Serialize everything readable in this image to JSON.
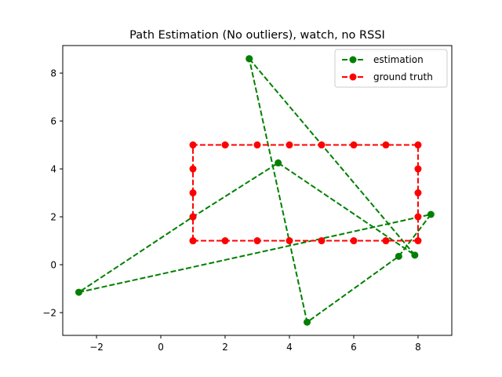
{
  "chart_data": {
    "type": "line",
    "title": "Path Estimation (No outliers), watch, no RSSI",
    "xlabel": "",
    "ylabel": "",
    "xlim": [
      -3.05,
      9.05
    ],
    "ylim": [
      -2.95,
      9.15
    ],
    "xticks": [
      -2,
      0,
      2,
      4,
      6,
      8
    ],
    "yticks": [
      -2,
      0,
      2,
      4,
      6,
      8
    ],
    "xtick_labels": [
      "−2",
      "0",
      "2",
      "4",
      "6",
      "8"
    ],
    "ytick_labels": [
      "−2",
      "0",
      "2",
      "4",
      "6",
      "8"
    ],
    "grid": false,
    "legend_position": "top-right",
    "series": [
      {
        "name": "estimation",
        "color": "#008000",
        "linestyle": "dashed",
        "marker": "circle",
        "x": [
          2.75,
          7.9,
          3.65,
          1.0,
          -2.55,
          8.4,
          7.4,
          4.55,
          2.75
        ],
        "y": [
          8.6,
          0.4,
          4.25,
          2.0,
          -1.15,
          2.1,
          0.35,
          -2.4,
          8.6
        ]
      },
      {
        "name": "ground truth",
        "color": "#ff0000",
        "linestyle": "dashed",
        "marker": "circle",
        "x": [
          1,
          2,
          3,
          4,
          5,
          6,
          7,
          8,
          8,
          8,
          8,
          8,
          7,
          6,
          5,
          4,
          3,
          2,
          1,
          1,
          1,
          1,
          1
        ],
        "y": [
          1,
          1,
          1,
          1,
          1,
          1,
          1,
          1,
          2,
          3,
          4,
          5,
          5,
          5,
          5,
          5,
          5,
          5,
          5,
          4,
          3,
          2,
          1
        ]
      }
    ]
  }
}
